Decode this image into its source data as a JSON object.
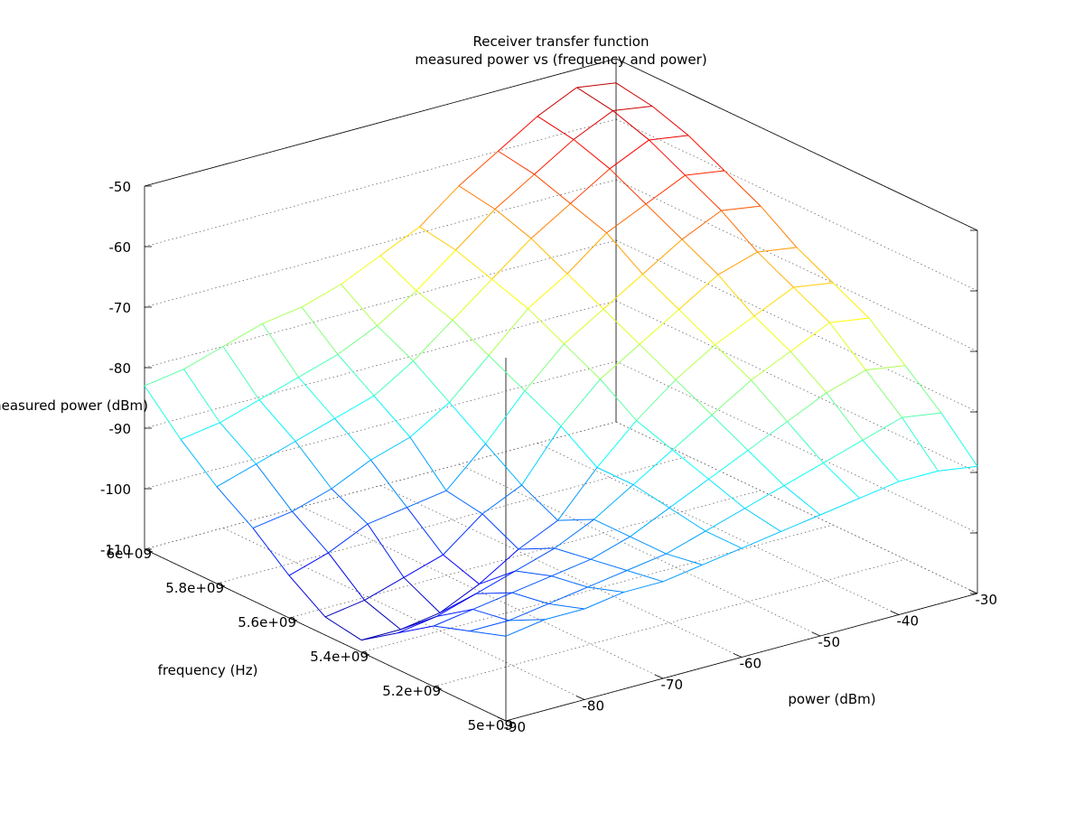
{
  "chart_data": {
    "type": "surface",
    "title": "Receiver transfer function",
    "subtitle": "measured power vs (frequency and power)",
    "xlabel": "frequency (Hz)",
    "ylabel": "power (dBm)",
    "zlabel": "measured power (dBm)",
    "xlim": [
      5000000000,
      6000000000
    ],
    "ylim": [
      -90,
      -30
    ],
    "zlim": [
      -110,
      -50
    ],
    "x_ticks": [
      "5e+09",
      "5.2e+09",
      "5.4e+09",
      "5.6e+09",
      "5.8e+09",
      "6e+09"
    ],
    "y_ticks": [
      "-90",
      "-80",
      "-70",
      "-60",
      "-50",
      "-40",
      "-30"
    ],
    "z_ticks": [
      "-110",
      "-100",
      "-90",
      "-80",
      "-70",
      "-60",
      "-50"
    ],
    "grid": true,
    "colormap": "jet",
    "frequencies": [
      5000000000,
      5100000000,
      5200000000,
      5300000000,
      5400000000,
      5500000000,
      5600000000,
      5700000000,
      5800000000,
      5900000000,
      6000000000
    ],
    "powers": [
      -90,
      -85,
      -80,
      -75,
      -70,
      -65,
      -60,
      -55,
      -50,
      -45,
      -40,
      -35,
      -30
    ],
    "measured_power": [
      [
        -96,
        -95,
        -95,
        -94,
        -94,
        -93,
        -92,
        -91,
        -90,
        -89,
        -88,
        -88,
        -89
      ],
      [
        -98,
        -98,
        -97,
        -96,
        -95,
        -94,
        -92,
        -90,
        -88,
        -86,
        -84,
        -82,
        -83
      ],
      [
        -100,
        -99,
        -98,
        -97,
        -96,
        -94,
        -91,
        -88,
        -85,
        -82,
        -79,
        -77,
        -78
      ],
      [
        -104,
        -103,
        -101,
        -99,
        -97,
        -94,
        -90,
        -86,
        -82,
        -78,
        -75,
        -72,
        -73
      ],
      [
        -108,
        -108,
        -107,
        -104,
        -100,
        -97,
        -90,
        -84,
        -79,
        -75,
        -72,
        -69,
        -70
      ],
      [
        -107,
        -106,
        -104,
        -102,
        -97,
        -94,
        -86,
        -80,
        -76,
        -72,
        -68,
        -66,
        -67
      ],
      [
        -103,
        -101,
        -98,
        -97,
        -96,
        -90,
        -83,
        -77,
        -73,
        -69,
        -65,
        -62,
        -63
      ],
      [
        -98,
        -97,
        -95,
        -92,
        -90,
        -86,
        -80,
        -74,
        -70,
        -65,
        -62,
        -59,
        -60
      ],
      [
        -94,
        -92,
        -90,
        -88,
        -86,
        -82,
        -77,
        -72,
        -67,
        -63,
        -59,
        -56,
        -57
      ],
      [
        -89,
        -88,
        -86,
        -84,
        -82,
        -79,
        -75,
        -70,
        -65,
        -61,
        -57,
        -54,
        -55
      ],
      [
        -83,
        -82,
        -80,
        -78,
        -77,
        -75,
        -72,
        -69,
        -64,
        -60,
        -56,
        -53,
        -54
      ]
    ]
  }
}
